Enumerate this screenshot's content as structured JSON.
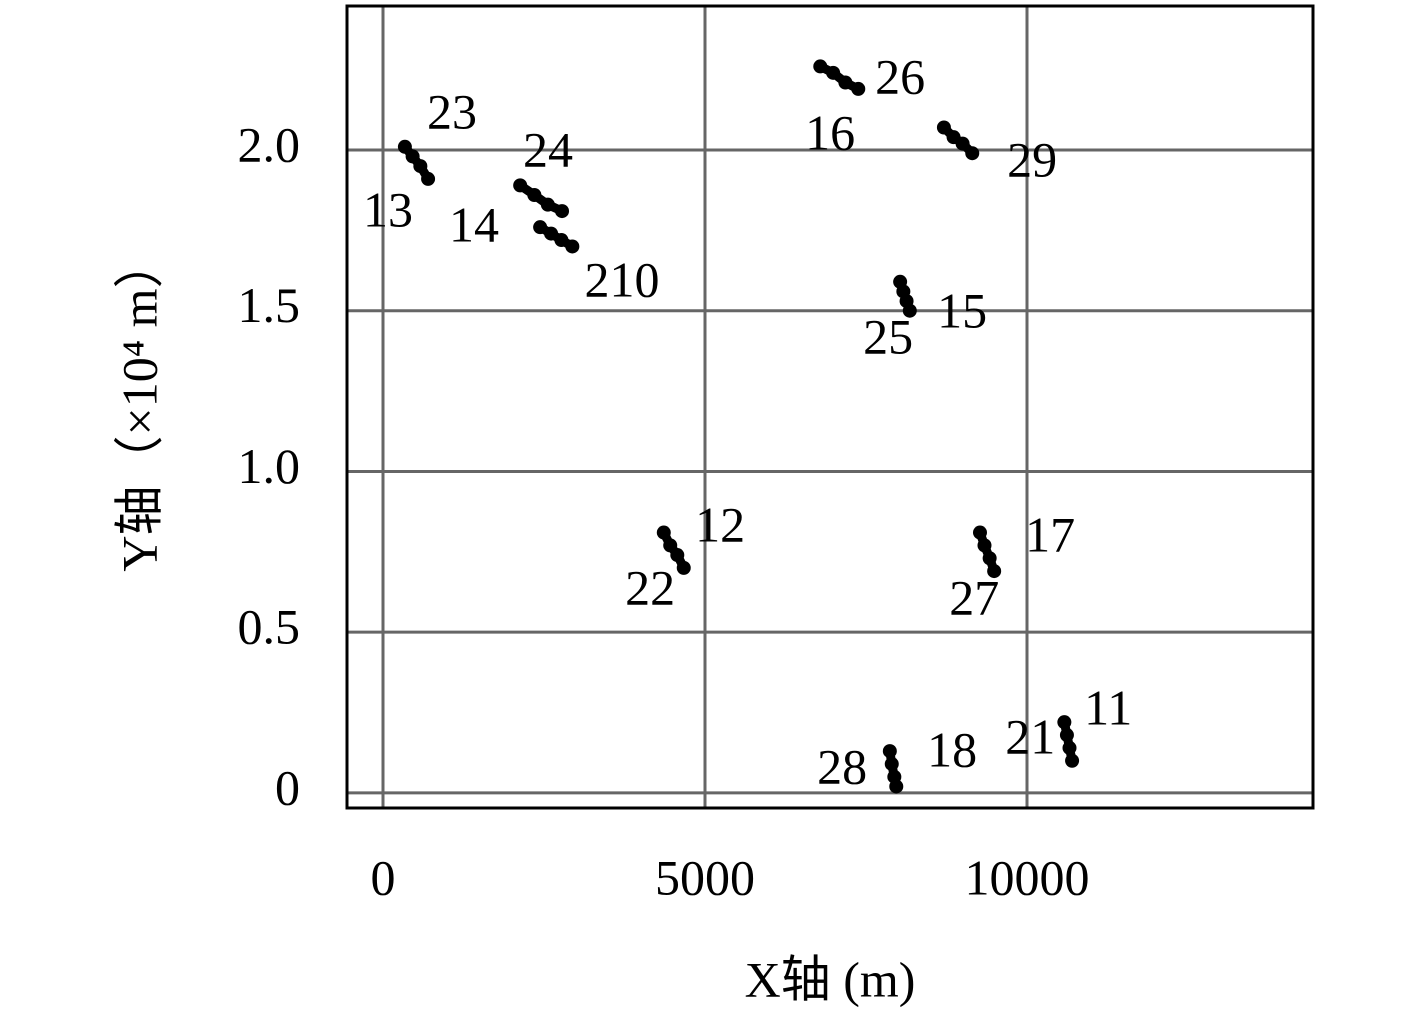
{
  "chart_data": {
    "type": "scatter",
    "x_label": "X轴 (m)",
    "y_label": "Y轴（×10⁴ m）",
    "xlim": [
      -559,
      14441
    ],
    "xticks": [
      0,
      5000,
      10000
    ],
    "ylim": [
      -0.047,
      2.448
    ],
    "yticks": [
      0,
      0.5,
      {
        "value": 1,
        "label": "1.0"
      },
      1.5,
      {
        "value": 2,
        "label": "2.0"
      }
    ],
    "grid": true,
    "color": "#000000",
    "series": [
      {
        "x": [
          340,
          460,
          580,
          700
        ],
        "values": [
          2.01,
          1.98,
          1.95,
          1.91
        ]
      },
      {
        "x": [
          2130,
          2350,
          2560,
          2780
        ],
        "values": [
          1.89,
          1.86,
          1.83,
          1.81
        ]
      },
      {
        "x": [
          2440,
          2610,
          2770,
          2940
        ],
        "values": [
          1.76,
          1.74,
          1.72,
          1.7
        ]
      },
      {
        "x": [
          6790,
          6990,
          7180,
          7380
        ],
        "values": [
          2.26,
          2.24,
          2.21,
          2.19
        ]
      },
      {
        "x": [
          8710,
          8860,
          9000,
          9150
        ],
        "values": [
          2.07,
          2.04,
          2.02,
          1.99
        ]
      },
      {
        "x": [
          8030,
          8080,
          8130,
          8180
        ],
        "values": [
          1.59,
          1.56,
          1.53,
          1.5
        ]
      },
      {
        "x": [
          4360,
          4460,
          4570,
          4670
        ],
        "values": [
          0.81,
          0.77,
          0.74,
          0.7
        ]
      },
      {
        "x": [
          9270,
          9340,
          9420,
          9490
        ],
        "values": [
          0.81,
          0.77,
          0.73,
          0.69
        ]
      },
      {
        "x": [
          7870,
          7900,
          7940,
          7970
        ],
        "values": [
          0.13,
          0.09,
          0.05,
          0.02
        ]
      },
      {
        "x": [
          10580,
          10620,
          10660,
          10700
        ],
        "values": [
          0.22,
          0.18,
          0.14,
          0.1
        ]
      }
    ],
    "annotations": [
      {
        "text": "23",
        "x": 1072,
        "y": 2.103
      },
      {
        "text": "13",
        "x": 78,
        "y": 1.798
      },
      {
        "text": "24",
        "x": 2563,
        "y": 1.984
      },
      {
        "text": "14",
        "x": 1413,
        "y": 1.751
      },
      {
        "text": "210",
        "x": 3712,
        "y": 1.58
      },
      {
        "text": "26",
        "x": 8030,
        "y": 2.212
      },
      {
        "text": "16",
        "x": 6943,
        "y": 2.037
      },
      {
        "text": "29",
        "x": 10080,
        "y": 1.953
      },
      {
        "text": "15",
        "x": 8993,
        "y": 1.484
      },
      {
        "text": "25",
        "x": 7843,
        "y": 1.403
      },
      {
        "text": "12",
        "x": 5234,
        "y": 0.818
      },
      {
        "text": "22",
        "x": 4147,
        "y": 0.622
      },
      {
        "text": "17",
        "x": 10360,
        "y": 0.787
      },
      {
        "text": "27",
        "x": 9180,
        "y": 0.591
      },
      {
        "text": "11",
        "x": 11260,
        "y": 0.249
      },
      {
        "text": "21",
        "x": 10050,
        "y": 0.159
      },
      {
        "text": "18",
        "x": 8837,
        "y": 0.118
      },
      {
        "text": "28",
        "x": 7129,
        "y": 0.065
      }
    ]
  }
}
